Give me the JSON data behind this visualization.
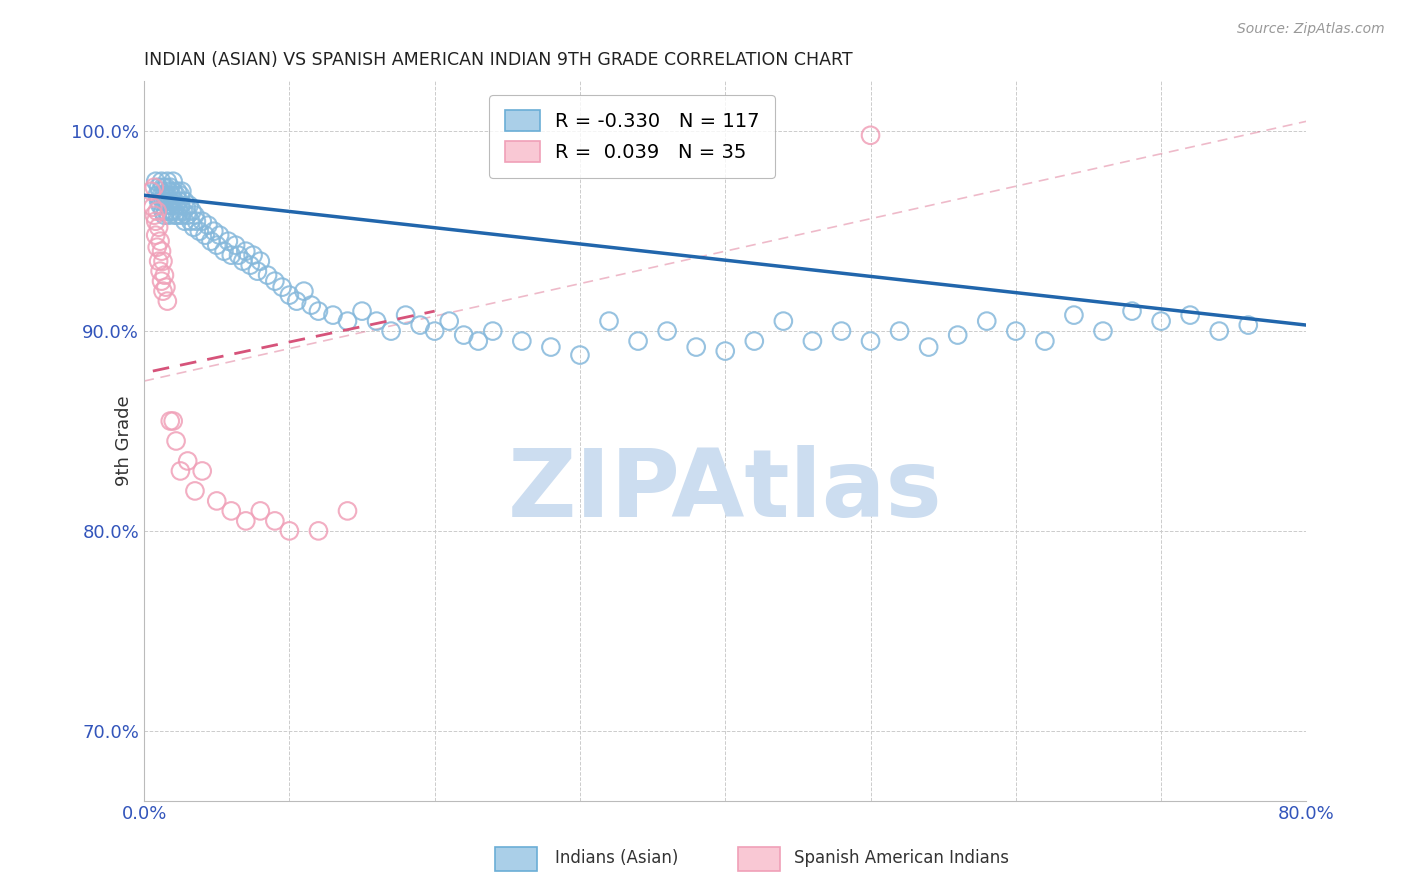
{
  "title": "INDIAN (ASIAN) VS SPANISH AMERICAN INDIAN 9TH GRADE CORRELATION CHART",
  "source": "Source: ZipAtlas.com",
  "ylabel_label": "9th Grade",
  "xlim": [
    0.0,
    0.8
  ],
  "ylim": [
    0.665,
    1.025
  ],
  "y_ticks": [
    0.7,
    0.8,
    0.9,
    1.0
  ],
  "y_tick_labels": [
    "70.0%",
    "80.0%",
    "90.0%",
    "100.0%"
  ],
  "legend_blue_label": "Indians (Asian)",
  "legend_pink_label": "Spanish American Indians",
  "blue_R": -0.33,
  "blue_N": 117,
  "pink_R": 0.039,
  "pink_N": 35,
  "blue_scatter_color": "#85b8db",
  "pink_scatter_color": "#f0a0b8",
  "blue_line_color": "#2166ac",
  "pink_line_color": "#d6537a",
  "watermark": "ZIPAtlas",
  "watermark_color": "#ccddf0",
  "background_color": "#ffffff",
  "blue_scatter_x": [
    0.008,
    0.009,
    0.01,
    0.01,
    0.011,
    0.011,
    0.012,
    0.012,
    0.013,
    0.013,
    0.013,
    0.014,
    0.014,
    0.015,
    0.015,
    0.015,
    0.016,
    0.016,
    0.017,
    0.017,
    0.017,
    0.018,
    0.018,
    0.018,
    0.019,
    0.019,
    0.02,
    0.02,
    0.02,
    0.021,
    0.021,
    0.022,
    0.022,
    0.023,
    0.023,
    0.024,
    0.024,
    0.025,
    0.025,
    0.026,
    0.026,
    0.027,
    0.028,
    0.028,
    0.029,
    0.03,
    0.031,
    0.032,
    0.033,
    0.034,
    0.035,
    0.036,
    0.038,
    0.04,
    0.042,
    0.044,
    0.046,
    0.048,
    0.05,
    0.052,
    0.055,
    0.058,
    0.06,
    0.063,
    0.065,
    0.068,
    0.07,
    0.073,
    0.075,
    0.078,
    0.08,
    0.085,
    0.09,
    0.095,
    0.1,
    0.105,
    0.11,
    0.115,
    0.12,
    0.13,
    0.14,
    0.15,
    0.16,
    0.17,
    0.18,
    0.19,
    0.2,
    0.21,
    0.22,
    0.23,
    0.24,
    0.26,
    0.28,
    0.3,
    0.32,
    0.34,
    0.36,
    0.38,
    0.4,
    0.42,
    0.44,
    0.46,
    0.48,
    0.5,
    0.52,
    0.54,
    0.56,
    0.58,
    0.6,
    0.62,
    0.64,
    0.66,
    0.68,
    0.7,
    0.72,
    0.74,
    0.76
  ],
  "blue_scatter_y": [
    0.975,
    0.968,
    0.972,
    0.965,
    0.97,
    0.963,
    0.968,
    0.975,
    0.96,
    0.972,
    0.965,
    0.968,
    0.958,
    0.965,
    0.972,
    0.96,
    0.968,
    0.975,
    0.963,
    0.97,
    0.958,
    0.965,
    0.972,
    0.96,
    0.968,
    0.963,
    0.97,
    0.96,
    0.975,
    0.965,
    0.958,
    0.968,
    0.963,
    0.97,
    0.958,
    0.965,
    0.96,
    0.968,
    0.963,
    0.958,
    0.97,
    0.96,
    0.965,
    0.955,
    0.962,
    0.958,
    0.963,
    0.955,
    0.96,
    0.952,
    0.958,
    0.955,
    0.95,
    0.955,
    0.948,
    0.953,
    0.945,
    0.95,
    0.943,
    0.948,
    0.94,
    0.945,
    0.938,
    0.943,
    0.938,
    0.935,
    0.94,
    0.933,
    0.938,
    0.93,
    0.935,
    0.928,
    0.925,
    0.922,
    0.918,
    0.915,
    0.92,
    0.913,
    0.91,
    0.908,
    0.905,
    0.91,
    0.905,
    0.9,
    0.908,
    0.903,
    0.9,
    0.905,
    0.898,
    0.895,
    0.9,
    0.895,
    0.892,
    0.888,
    0.905,
    0.895,
    0.9,
    0.892,
    0.89,
    0.895,
    0.905,
    0.895,
    0.9,
    0.895,
    0.9,
    0.892,
    0.898,
    0.905,
    0.9,
    0.895,
    0.908,
    0.9,
    0.91,
    0.905,
    0.908,
    0.9,
    0.903
  ],
  "pink_scatter_x": [
    0.005,
    0.006,
    0.007,
    0.007,
    0.008,
    0.008,
    0.009,
    0.009,
    0.01,
    0.01,
    0.011,
    0.011,
    0.012,
    0.012,
    0.013,
    0.013,
    0.014,
    0.015,
    0.016,
    0.018,
    0.02,
    0.022,
    0.025,
    0.03,
    0.035,
    0.04,
    0.05,
    0.06,
    0.07,
    0.08,
    0.09,
    0.1,
    0.12,
    0.14,
    0.5
  ],
  "pink_scatter_y": [
    0.97,
    0.962,
    0.972,
    0.958,
    0.955,
    0.948,
    0.96,
    0.942,
    0.952,
    0.935,
    0.945,
    0.93,
    0.94,
    0.925,
    0.935,
    0.92,
    0.928,
    0.922,
    0.915,
    0.855,
    0.855,
    0.845,
    0.83,
    0.835,
    0.82,
    0.83,
    0.815,
    0.81,
    0.805,
    0.81,
    0.805,
    0.8,
    0.8,
    0.81,
    0.998
  ],
  "blue_line_x0": 0.0,
  "blue_line_x1": 0.8,
  "blue_line_y0": 0.968,
  "blue_line_y1": 0.903,
  "pink_line_x0": 0.006,
  "pink_line_x1": 0.2,
  "pink_line_y0": 0.88,
  "pink_line_y1": 0.91
}
